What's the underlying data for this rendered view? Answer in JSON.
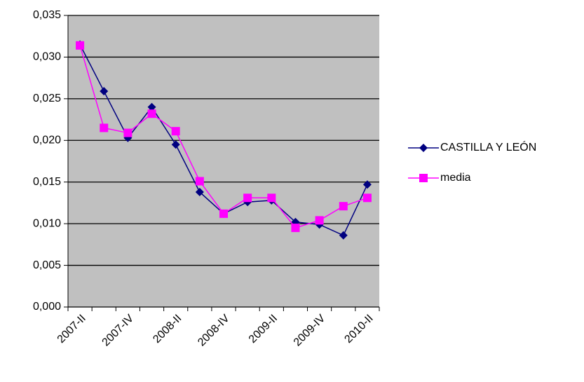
{
  "chart_data": {
    "type": "line",
    "categories": [
      "2007-II",
      null,
      "2007-IV",
      null,
      "2008-II",
      null,
      "2008-IV",
      null,
      "2009-II",
      null,
      "2009-IV",
      null,
      "2010-II"
    ],
    "series": [
      {
        "name": "CASTILLA Y LEÓN",
        "color": "#000080",
        "marker": "diamond",
        "values": [
          0.0315,
          0.0259,
          0.0203,
          0.024,
          0.0195,
          0.0138,
          0.0112,
          0.0126,
          0.0128,
          0.0102,
          0.0099,
          0.0086,
          0.0147
        ]
      },
      {
        "name": "media",
        "color": "#ff00ff",
        "marker": "square",
        "values": [
          0.0314,
          0.0215,
          0.0209,
          0.0232,
          0.0211,
          0.0151,
          0.0112,
          0.0131,
          0.0131,
          0.0095,
          0.0104,
          0.0121,
          0.0131
        ]
      }
    ],
    "ylim": [
      0,
      0.035
    ],
    "yticks": [
      {
        "value": 0,
        "label": "0,000"
      },
      {
        "value": 0.005,
        "label": "0,005"
      },
      {
        "value": 0.01,
        "label": "0,010"
      },
      {
        "value": 0.015,
        "label": "0,015"
      },
      {
        "value": 0.02,
        "label": "0,020"
      },
      {
        "value": 0.025,
        "label": "0,025"
      },
      {
        "value": 0.03,
        "label": "0,030"
      },
      {
        "value": 0.035,
        "label": "0,035"
      }
    ],
    "grid": true,
    "plot_background": "#c0c0c0",
    "legend": "right"
  }
}
